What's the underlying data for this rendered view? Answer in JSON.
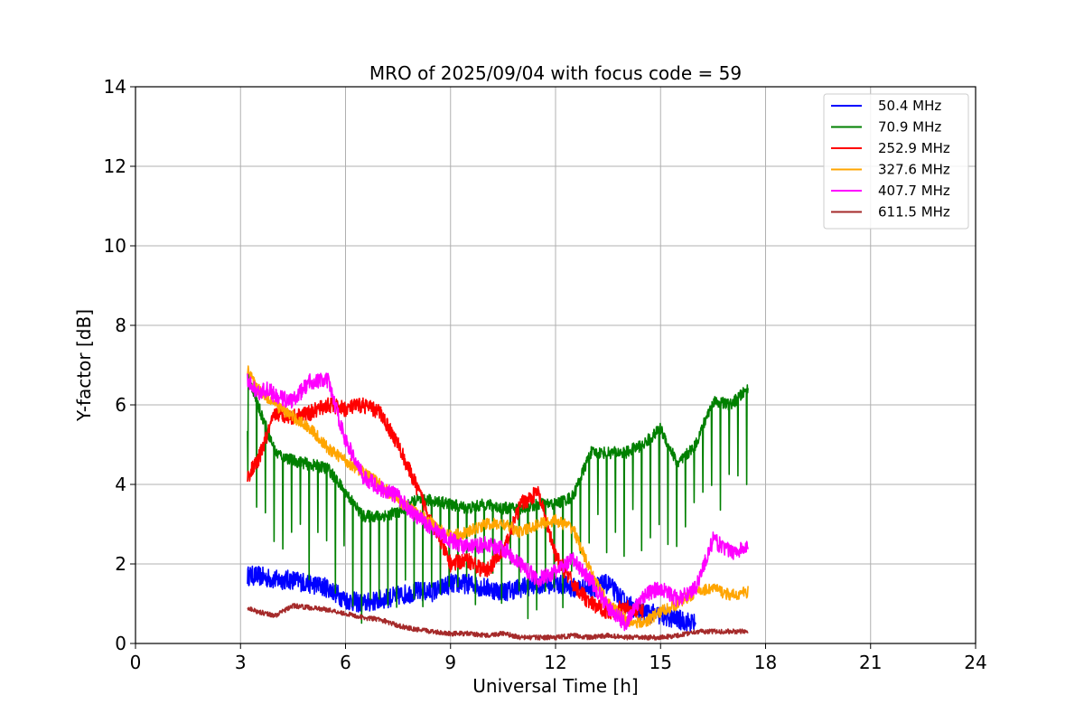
{
  "chart_data": {
    "type": "line",
    "title": "MRO of 2025/09/04 with focus code = 59",
    "xlabel": "Universal Time [h]",
    "ylabel": "Y-factor [dB]",
    "xlim": [
      0,
      24
    ],
    "ylim": [
      0,
      14
    ],
    "xticks": [
      0,
      3,
      6,
      9,
      12,
      15,
      18,
      21,
      24
    ],
    "yticks": [
      0,
      2,
      4,
      6,
      8,
      10,
      12,
      14
    ],
    "grid": true,
    "legend_position": "top-right",
    "series": [
      {
        "name": "50.4 MHz",
        "color": "#0000ff",
        "noise": 0.25,
        "x": [
          3.2,
          3.5,
          4.0,
          4.5,
          5.0,
          5.5,
          6.0,
          6.5,
          7.0,
          7.5,
          8.0,
          8.5,
          9.0,
          9.5,
          10.0,
          10.5,
          11.0,
          11.5,
          12.0,
          12.5,
          13.0,
          13.5,
          14.0,
          14.5,
          15.0,
          15.5,
          16.0
        ],
        "y": [
          1.7,
          1.7,
          1.6,
          1.6,
          1.5,
          1.4,
          1.1,
          1.0,
          1.1,
          1.2,
          1.3,
          1.3,
          1.5,
          1.5,
          1.4,
          1.3,
          1.4,
          1.5,
          1.5,
          1.4,
          1.4,
          1.5,
          1.0,
          0.8,
          0.7,
          0.6,
          0.5
        ]
      },
      {
        "name": "70.9 MHz",
        "color": "#008000",
        "noise": 0.15,
        "dip_interval": 0.25,
        "x": [
          3.2,
          3.5,
          4.0,
          4.5,
          5.0,
          5.5,
          6.0,
          6.5,
          7.0,
          7.5,
          8.0,
          8.5,
          9.0,
          9.5,
          10.0,
          10.5,
          11.0,
          11.5,
          12.0,
          12.5,
          13.0,
          13.5,
          14.0,
          14.5,
          15.0,
          15.5,
          16.0,
          16.5,
          17.0,
          17.5
        ],
        "y": [
          6.8,
          6.0,
          4.8,
          4.6,
          4.5,
          4.4,
          3.8,
          3.2,
          3.2,
          3.3,
          3.6,
          3.6,
          3.5,
          3.4,
          3.5,
          3.4,
          3.4,
          3.5,
          3.5,
          3.7,
          4.8,
          4.8,
          4.8,
          5.0,
          5.4,
          4.5,
          5.0,
          6.1,
          6.0,
          6.4
        ]
      },
      {
        "name": "252.9 MHz",
        "color": "#ff0000",
        "noise": 0.2,
        "x": [
          3.2,
          3.5,
          4.0,
          4.5,
          5.0,
          5.5,
          6.0,
          6.5,
          7.0,
          7.5,
          8.0,
          8.5,
          9.0,
          9.5,
          10.0,
          10.5,
          11.0,
          11.5,
          12.0,
          12.5,
          13.0,
          13.5,
          14.0,
          14.5
        ],
        "y": [
          4.2,
          4.6,
          5.8,
          5.7,
          5.8,
          6.0,
          5.9,
          6.0,
          5.8,
          5.0,
          4.0,
          3.0,
          2.0,
          2.1,
          1.8,
          2.3,
          3.5,
          3.8,
          2.2,
          1.5,
          1.0,
          0.8,
          0.9,
          0.8
        ]
      },
      {
        "name": "327.6 MHz",
        "color": "#ffa500",
        "noise": 0.15,
        "x": [
          3.2,
          3.5,
          4.0,
          4.5,
          5.0,
          5.5,
          6.0,
          6.5,
          7.0,
          7.5,
          8.0,
          8.5,
          9.0,
          9.5,
          10.0,
          10.5,
          11.0,
          11.5,
          12.0,
          12.5,
          13.0,
          13.5,
          14.0,
          14.5,
          15.0,
          15.5,
          16.0,
          16.5,
          17.0,
          17.5
        ],
        "y": [
          6.9,
          6.4,
          6.0,
          5.7,
          5.4,
          4.9,
          4.6,
          4.3,
          4.0,
          3.6,
          3.3,
          3.0,
          2.7,
          2.8,
          3.0,
          3.0,
          2.8,
          3.0,
          3.1,
          2.9,
          1.8,
          1.0,
          0.6,
          0.5,
          0.8,
          1.0,
          1.3,
          1.4,
          1.2,
          1.3
        ]
      },
      {
        "name": "407.7 MHz",
        "color": "#ff00ff",
        "noise": 0.2,
        "x": [
          3.2,
          3.5,
          3.8,
          4.0,
          4.5,
          5.0,
          5.5,
          6.0,
          6.5,
          7.0,
          7.5,
          8.0,
          8.5,
          9.0,
          9.5,
          10.0,
          10.5,
          11.0,
          11.5,
          12.0,
          12.5,
          13.0,
          13.5,
          14.0,
          14.5,
          15.0,
          15.5,
          16.0,
          16.5,
          17.0,
          17.5
        ],
        "y": [
          6.6,
          6.3,
          6.4,
          6.2,
          6.1,
          6.6,
          6.6,
          5.1,
          4.2,
          3.9,
          3.7,
          3.2,
          2.9,
          2.6,
          2.4,
          2.5,
          2.4,
          2.0,
          1.6,
          1.8,
          2.1,
          1.6,
          0.9,
          0.5,
          1.2,
          1.4,
          1.1,
          1.4,
          2.6,
          2.3,
          2.4
        ]
      },
      {
        "name": "611.5 MHz",
        "color": "#a52a2a",
        "noise": 0.06,
        "x": [
          3.2,
          3.5,
          4.0,
          4.5,
          5.0,
          5.5,
          6.0,
          6.5,
          7.0,
          7.5,
          8.0,
          8.5,
          9.0,
          9.5,
          10.0,
          10.5,
          11.0,
          11.5,
          12.0,
          12.5,
          13.0,
          13.5,
          14.0,
          14.5,
          15.0,
          15.5,
          16.0,
          16.5,
          17.0,
          17.5
        ],
        "y": [
          0.9,
          0.8,
          0.7,
          0.95,
          0.9,
          0.85,
          0.75,
          0.65,
          0.6,
          0.45,
          0.35,
          0.3,
          0.25,
          0.25,
          0.2,
          0.25,
          0.15,
          0.15,
          0.15,
          0.2,
          0.15,
          0.2,
          0.15,
          0.15,
          0.15,
          0.2,
          0.3,
          0.3,
          0.3,
          0.3
        ]
      }
    ]
  }
}
